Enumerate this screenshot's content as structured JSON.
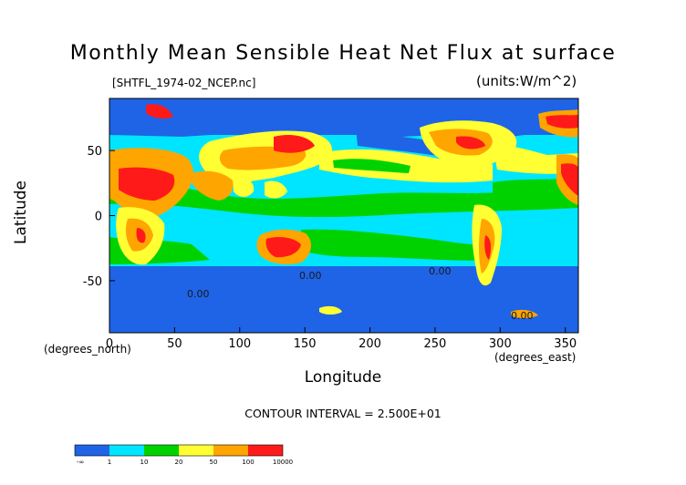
{
  "header": {
    "title": "Monthly Mean Sensible Heat Net Flux at surface",
    "filename": "[SHTFL_1974-02_NCEP.nc]",
    "units": "(units:W/m^2)"
  },
  "footer": {
    "contour_interval": "CONTOUR INTERVAL = 2.500E+01"
  },
  "chart_data": {
    "type": "heatmap",
    "title": "Monthly Mean Sensible Heat Net Flux at surface",
    "xlabel": "Longitude",
    "ylabel": "Latitude",
    "x_unit_label": "(degrees_east)",
    "y_unit_label": "(degrees_north)",
    "xlim": [
      0,
      360
    ],
    "ylim": [
      -90,
      90
    ],
    "x_ticks": [
      0,
      50,
      100,
      150,
      200,
      250,
      300,
      350
    ],
    "y_ticks": [
      -50,
      0,
      50
    ],
    "contour_labels": [
      "0.00",
      "0.00",
      "0.00",
      "0.00"
    ],
    "colorbar": {
      "labels": [
        "-∞",
        "1",
        "10",
        "20",
        "50",
        "100",
        "10000"
      ],
      "colors": [
        "#1f64e6",
        "#00e5ff",
        "#00d200",
        "#ffff33",
        "#ffa500",
        "#ff1a1a"
      ]
    }
  }
}
